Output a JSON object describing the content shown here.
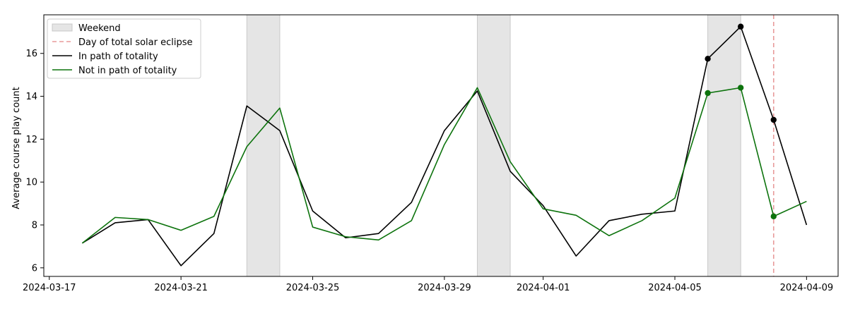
{
  "chart_data": {
    "type": "line",
    "title": "",
    "xlabel": "",
    "ylabel": "Average course play count",
    "x_type": "date",
    "xlim": [
      "2024-03-16T20:00",
      "2024-04-09T23:00"
    ],
    "ylim": [
      5.6,
      17.8
    ],
    "x_ticks": [
      "2024-03-17",
      "2024-03-21",
      "2024-03-25",
      "2024-03-29",
      "2024-04-01",
      "2024-04-05",
      "2024-04-09"
    ],
    "y_ticks": [
      6,
      8,
      10,
      12,
      14,
      16
    ],
    "grid": false,
    "legend_position": "top-left",
    "weekend_shading": {
      "label": "Weekend",
      "color": "#e5e5e5",
      "ranges": [
        [
          "2024-03-23",
          "2024-03-24"
        ],
        [
          "2024-03-30",
          "2024-03-31"
        ],
        [
          "2024-04-06",
          "2024-04-07"
        ]
      ]
    },
    "eclipse_marker": {
      "label": "Day of total solar eclipse",
      "date": "2024-04-08",
      "color": "#e89a9a"
    },
    "x": [
      "2024-03-18",
      "2024-03-19",
      "2024-03-20",
      "2024-03-21",
      "2024-03-22",
      "2024-03-23",
      "2024-03-24",
      "2024-03-25",
      "2024-03-26",
      "2024-03-27",
      "2024-03-28",
      "2024-03-29",
      "2024-03-30",
      "2024-03-31",
      "2024-04-01",
      "2024-04-02",
      "2024-04-03",
      "2024-04-04",
      "2024-04-05",
      "2024-04-06",
      "2024-04-07",
      "2024-04-08",
      "2024-04-09"
    ],
    "series": [
      {
        "name": "In path of totality",
        "color": "#000000",
        "values": [
          7.15,
          8.1,
          8.25,
          6.1,
          7.6,
          13.55,
          12.4,
          8.65,
          7.4,
          7.6,
          9.05,
          12.4,
          14.25,
          10.5,
          8.9,
          6.55,
          8.2,
          8.5,
          8.65,
          15.75,
          17.25,
          12.9,
          8.0
        ],
        "highlight_dates": [
          "2024-04-06",
          "2024-04-07",
          "2024-04-08"
        ]
      },
      {
        "name": "Not in path of totality",
        "color": "#0d730d",
        "values": [
          7.15,
          8.35,
          8.25,
          7.75,
          8.4,
          11.65,
          13.45,
          7.9,
          7.45,
          7.3,
          8.2,
          11.75,
          14.4,
          10.95,
          8.75,
          8.45,
          7.5,
          8.2,
          9.25,
          14.15,
          14.4,
          8.4,
          9.1
        ],
        "highlight_dates": [
          "2024-04-06",
          "2024-04-07",
          "2024-04-08"
        ]
      }
    ]
  }
}
